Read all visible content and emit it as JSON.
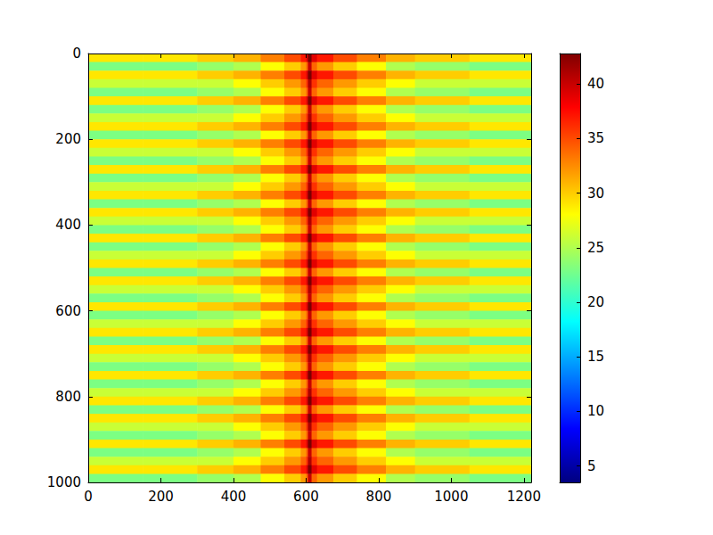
{
  "chart_data": {
    "type": "heatmap",
    "xlim": [
      0,
      1220
    ],
    "ylim": [
      1000,
      0
    ],
    "xticks": [
      0,
      200,
      400,
      600,
      800,
      1000,
      1200
    ],
    "yticks": [
      0,
      200,
      400,
      600,
      800,
      1000
    ],
    "grid": false,
    "x_edges": [
      0,
      150,
      300,
      400,
      475,
      540,
      585,
      600,
      605,
      615,
      630,
      675,
      740,
      820,
      900,
      1050,
      1220
    ],
    "y_edges": [
      0,
      20,
      40,
      60,
      80,
      100,
      120,
      140,
      160,
      180,
      200,
      220,
      240,
      260,
      280,
      300,
      320,
      340,
      360,
      380,
      400,
      420,
      440,
      460,
      480,
      500,
      520,
      540,
      560,
      580,
      600,
      620,
      640,
      660,
      680,
      700,
      720,
      740,
      760,
      780,
      800,
      820,
      840,
      860,
      880,
      900,
      920,
      940,
      960,
      980,
      1000
    ],
    "cells": [
      [
        29,
        29,
        30,
        31,
        33,
        35,
        37,
        39,
        43,
        39,
        37,
        35,
        33,
        31,
        30,
        29
      ],
      [
        23,
        23,
        24,
        25,
        28,
        30,
        32,
        34,
        40,
        34,
        32,
        30,
        28,
        25,
        24,
        23
      ],
      [
        29,
        29,
        30,
        31,
        33,
        35,
        37,
        39,
        43,
        39,
        37,
        35,
        33,
        31,
        30,
        29
      ],
      [
        26,
        26,
        26,
        28,
        30,
        32,
        34,
        36,
        41,
        36,
        34,
        32,
        30,
        28,
        26,
        26
      ],
      [
        23,
        23,
        24,
        25,
        28,
        30,
        32,
        34,
        40,
        34,
        32,
        30,
        28,
        25,
        24,
        23
      ],
      [
        29,
        29,
        30,
        31,
        33,
        35,
        37,
        39,
        43,
        39,
        37,
        35,
        33,
        31,
        30,
        29
      ],
      [
        23,
        23,
        24,
        25,
        28,
        30,
        32,
        34,
        40,
        34,
        32,
        30,
        28,
        25,
        24,
        23
      ],
      [
        26,
        26,
        26,
        28,
        30,
        32,
        34,
        36,
        41,
        36,
        34,
        32,
        30,
        28,
        26,
        26
      ],
      [
        29,
        29,
        30,
        31,
        33,
        35,
        37,
        39,
        43,
        39,
        37,
        35,
        33,
        31,
        30,
        29
      ],
      [
        23,
        23,
        24,
        25,
        28,
        30,
        32,
        34,
        40,
        34,
        32,
        30,
        28,
        25,
        24,
        23
      ],
      [
        29,
        29,
        30,
        31,
        33,
        35,
        37,
        39,
        43,
        39,
        37,
        35,
        33,
        31,
        30,
        29
      ],
      [
        26,
        26,
        26,
        28,
        30,
        32,
        34,
        36,
        41,
        36,
        34,
        32,
        30,
        28,
        26,
        26
      ],
      [
        23,
        23,
        24,
        25,
        28,
        30,
        32,
        34,
        40,
        34,
        32,
        30,
        28,
        25,
        24,
        23
      ],
      [
        29,
        29,
        30,
        31,
        33,
        35,
        37,
        39,
        43,
        39,
        37,
        35,
        33,
        31,
        30,
        29
      ],
      [
        23,
        23,
        24,
        25,
        28,
        30,
        32,
        34,
        40,
        34,
        32,
        30,
        28,
        25,
        24,
        23
      ],
      [
        26,
        26,
        26,
        28,
        30,
        32,
        34,
        36,
        41,
        36,
        34,
        32,
        30,
        28,
        26,
        26
      ],
      [
        29,
        29,
        30,
        31,
        33,
        35,
        37,
        39,
        43,
        39,
        37,
        35,
        33,
        31,
        30,
        29
      ],
      [
        23,
        23,
        24,
        25,
        28,
        30,
        32,
        34,
        40,
        34,
        32,
        30,
        28,
        25,
        24,
        23
      ],
      [
        29,
        29,
        30,
        31,
        33,
        35,
        37,
        39,
        43,
        39,
        37,
        35,
        33,
        31,
        30,
        29
      ],
      [
        26,
        26,
        26,
        28,
        30,
        32,
        34,
        36,
        41,
        36,
        34,
        32,
        30,
        28,
        26,
        26
      ],
      [
        23,
        23,
        24,
        25,
        28,
        30,
        32,
        34,
        40,
        34,
        32,
        30,
        28,
        25,
        24,
        23
      ],
      [
        29,
        29,
        30,
        31,
        33,
        35,
        37,
        39,
        43,
        39,
        37,
        35,
        33,
        31,
        30,
        29
      ],
      [
        23,
        23,
        24,
        25,
        28,
        30,
        32,
        34,
        40,
        34,
        32,
        30,
        28,
        25,
        24,
        23
      ],
      [
        26,
        26,
        26,
        28,
        30,
        32,
        34,
        36,
        41,
        36,
        34,
        32,
        30,
        28,
        26,
        26
      ],
      [
        29,
        29,
        30,
        31,
        33,
        35,
        37,
        39,
        43,
        39,
        37,
        35,
        33,
        31,
        30,
        29
      ],
      [
        23,
        23,
        24,
        25,
        28,
        30,
        32,
        34,
        40,
        34,
        32,
        30,
        28,
        25,
        24,
        23
      ],
      [
        29,
        29,
        30,
        31,
        33,
        35,
        37,
        39,
        43,
        39,
        37,
        35,
        33,
        31,
        30,
        29
      ],
      [
        26,
        26,
        26,
        28,
        30,
        32,
        34,
        36,
        41,
        36,
        34,
        32,
        30,
        28,
        26,
        26
      ],
      [
        23,
        23,
        24,
        25,
        28,
        30,
        32,
        34,
        40,
        34,
        32,
        30,
        28,
        25,
        24,
        23
      ],
      [
        29,
        29,
        30,
        31,
        33,
        35,
        37,
        39,
        43,
        39,
        37,
        35,
        33,
        31,
        30,
        29
      ],
      [
        23,
        23,
        24,
        25,
        28,
        30,
        32,
        34,
        40,
        34,
        32,
        30,
        28,
        25,
        24,
        23
      ],
      [
        26,
        26,
        26,
        28,
        30,
        32,
        34,
        36,
        41,
        36,
        34,
        32,
        30,
        28,
        26,
        26
      ],
      [
        29,
        29,
        30,
        31,
        33,
        35,
        37,
        39,
        43,
        39,
        37,
        35,
        33,
        31,
        30,
        29
      ],
      [
        23,
        23,
        24,
        25,
        28,
        30,
        32,
        34,
        40,
        34,
        32,
        30,
        28,
        25,
        24,
        23
      ],
      [
        29,
        29,
        30,
        31,
        33,
        35,
        37,
        39,
        43,
        39,
        37,
        35,
        33,
        31,
        30,
        29
      ],
      [
        26,
        26,
        26,
        28,
        30,
        32,
        34,
        36,
        41,
        36,
        34,
        32,
        30,
        28,
        26,
        26
      ],
      [
        23,
        23,
        24,
        25,
        28,
        30,
        32,
        34,
        40,
        34,
        32,
        30,
        28,
        25,
        24,
        23
      ],
      [
        29,
        29,
        30,
        31,
        33,
        35,
        37,
        39,
        43,
        39,
        37,
        35,
        33,
        31,
        30,
        29
      ],
      [
        23,
        23,
        24,
        25,
        28,
        30,
        32,
        34,
        40,
        34,
        32,
        30,
        28,
        25,
        24,
        23
      ],
      [
        26,
        26,
        26,
        28,
        30,
        32,
        34,
        36,
        41,
        36,
        34,
        32,
        30,
        28,
        26,
        26
      ],
      [
        29,
        29,
        30,
        31,
        33,
        35,
        37,
        39,
        43,
        39,
        37,
        35,
        33,
        31,
        30,
        29
      ],
      [
        23,
        23,
        24,
        25,
        28,
        30,
        32,
        34,
        40,
        34,
        32,
        30,
        28,
        25,
        24,
        23
      ],
      [
        29,
        29,
        30,
        31,
        33,
        35,
        37,
        39,
        43,
        39,
        37,
        35,
        33,
        31,
        30,
        29
      ],
      [
        26,
        26,
        26,
        28,
        30,
        32,
        34,
        36,
        41,
        36,
        34,
        32,
        30,
        28,
        26,
        26
      ],
      [
        23,
        23,
        24,
        25,
        28,
        30,
        32,
        34,
        40,
        34,
        32,
        30,
        28,
        25,
        24,
        23
      ],
      [
        29,
        29,
        30,
        31,
        33,
        35,
        37,
        39,
        43,
        39,
        37,
        35,
        33,
        31,
        30,
        29
      ],
      [
        23,
        23,
        24,
        25,
        28,
        30,
        32,
        34,
        40,
        34,
        32,
        30,
        28,
        25,
        24,
        23
      ],
      [
        26,
        26,
        26,
        28,
        30,
        32,
        34,
        36,
        41,
        36,
        34,
        32,
        30,
        28,
        26,
        26
      ],
      [
        29,
        29,
        30,
        31,
        33,
        35,
        37,
        39,
        43,
        39,
        37,
        35,
        33,
        31,
        30,
        29
      ],
      [
        23,
        23,
        24,
        25,
        28,
        30,
        32,
        34,
        40,
        34,
        32,
        30,
        28,
        25,
        24,
        23
      ]
    ],
    "colorbar": {
      "range": [
        3.5,
        42.8
      ],
      "ticks": [
        5,
        10,
        15,
        20,
        25,
        30,
        35,
        40
      ]
    }
  }
}
